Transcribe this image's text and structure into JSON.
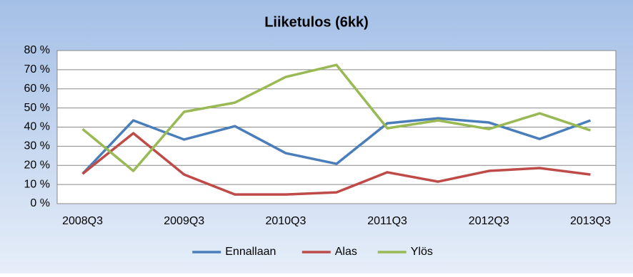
{
  "chart_data": {
    "type": "line",
    "title": "Liiketulos (6kk)",
    "categories": [
      "2008Q3",
      null,
      "2009Q3",
      null,
      "2010Q3",
      null,
      "2011Q3",
      null,
      "2012Q3",
      null,
      "2013Q3"
    ],
    "series": [
      {
        "name": "Ennallaan",
        "color": "#4a7ebb",
        "values": [
          15.6,
          43.5,
          33.5,
          40.5,
          26.4,
          20.8,
          42,
          44.6,
          42.4,
          33.8,
          43.5
        ]
      },
      {
        "name": "Alas",
        "color": "#be4b48",
        "values": [
          15.6,
          36.8,
          15.2,
          4.8,
          4.8,
          5.9,
          16.4,
          11.5,
          17.1,
          18.6,
          15.2
        ]
      },
      {
        "name": "Ylös",
        "color": "#98b954",
        "values": [
          39,
          17.1,
          48,
          52.8,
          66.2,
          72.5,
          39.4,
          43.5,
          39,
          47.2,
          38.3
        ]
      }
    ],
    "ylim": [
      0,
      80
    ],
    "yticks": [
      {
        "value": 0,
        "label": "0 %"
      },
      {
        "value": 10,
        "label": "10 %"
      },
      {
        "value": 20,
        "label": "20 %"
      },
      {
        "value": 30,
        "label": "30 %"
      },
      {
        "value": 40,
        "label": "40 %"
      },
      {
        "value": 50,
        "label": "50 %"
      },
      {
        "value": 60,
        "label": "60 %"
      },
      {
        "value": 70,
        "label": "70 %"
      },
      {
        "value": 80,
        "label": "80 %"
      }
    ],
    "grid": true,
    "legend": "bottom"
  }
}
